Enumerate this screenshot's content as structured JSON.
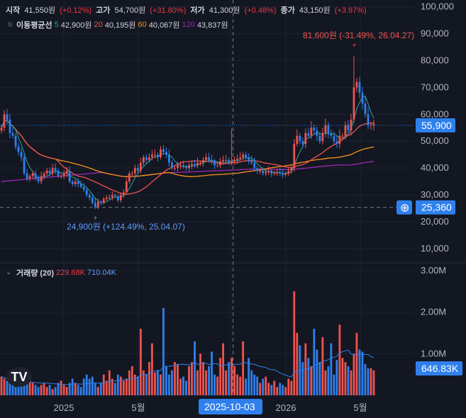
{
  "colors": {
    "background": "#131722",
    "up": "#ef5350",
    "down": "#2f80ed",
    "grid": "#1f2330",
    "text": "#b2b5be",
    "ma5": "#26a69a",
    "ma20": "#ef5350",
    "ma60": "#f7931a",
    "ma120": "#9c27b0",
    "vol_ma": "#2f80ed",
    "price_tag": "#2f80ed"
  },
  "header": {
    "open_label": "시작",
    "open_value": "41,550원",
    "open_change": "(+0.12%)",
    "high_label": "고가",
    "high_value": "54,700원",
    "high_change": "(+31.80%)",
    "low_label": "저가",
    "low_value": "41,300원",
    "low_change": "(+0.48%)",
    "close_label": "종가",
    "close_value": "43,150원",
    "close_change": "(+3.97%)"
  },
  "ma_legend": {
    "icon": "eye-slash-icon",
    "title": "이동평균선",
    "items": [
      {
        "period": "5",
        "value": "42,900원",
        "color": "#26a69a"
      },
      {
        "period": "20",
        "value": "40,195원",
        "color": "#ef5350"
      },
      {
        "period": "60",
        "value": "40,067원",
        "color": "#f7931a"
      },
      {
        "period": "120",
        "value": "43,837원",
        "color": "#9c27b0"
      }
    ]
  },
  "volume_legend": {
    "icon": "collapse-icon",
    "title": "거래량 (20)",
    "value_up": "229.68K",
    "value_ma": "710.04K"
  },
  "logo": "tradingview-logo",
  "chart_data": {
    "type": "candlestick",
    "price_axis": {
      "ticks": [
        "100,000",
        "90,000",
        "80,000",
        "70,000",
        "60,000",
        "50,000",
        "40,000",
        "30,000",
        "20,000",
        "10,000"
      ],
      "range": [
        5000,
        102500
      ],
      "current_price": "55,900",
      "current_price_value": 55900,
      "crosshair_price": "25,360",
      "crosshair_price_value": 25360
    },
    "volume_axis": {
      "ticks": [
        "3.00M",
        "2.00M",
        "1.00M"
      ],
      "range": [
        0,
        3100000
      ],
      "current_volume": "646.83K"
    },
    "x_axis": {
      "labels": [
        "2025",
        "5월",
        "2025-10-03",
        "2026",
        "5월"
      ]
    },
    "annotations": {
      "high": "81,600원 (-31.49%, 26.04.27)",
      "low": "24,900원 (+124.49%, 25.04.07)"
    },
    "periods": 132,
    "crosshair_x_index": 81,
    "closes": [
      55000,
      60000,
      58000,
      53000,
      52000,
      48000,
      46000,
      44000,
      38000,
      36000,
      37000,
      38000,
      36000,
      35000,
      37000,
      38000,
      39000,
      38000,
      40000,
      39000,
      37000,
      37000,
      38000,
      39000,
      35000,
      34000,
      35000,
      34000,
      33000,
      32000,
      30000,
      29000,
      27000,
      25500,
      27500,
      27000,
      28500,
      29000,
      29000,
      30000,
      29500,
      28000,
      30000,
      31000,
      35000,
      38000,
      38000,
      40000,
      39000,
      42000,
      44000,
      43000,
      44000,
      45000,
      45000,
      44000,
      47000,
      46000,
      45000,
      42000,
      40000,
      40000,
      41000,
      41000,
      40500,
      40000,
      41000,
      41500,
      41000,
      42000,
      42000,
      43000,
      44000,
      43000,
      42500,
      41000,
      41000,
      42500,
      43000,
      43000,
      42000,
      42500,
      43000,
      43500,
      44000,
      45000,
      44000,
      43000,
      42000,
      40000,
      39000,
      39000,
      38000,
      38500,
      39000,
      38000,
      38000,
      38500,
      38000,
      37500,
      38000,
      39000,
      40000,
      49000,
      52000,
      50000,
      49000,
      53000,
      52000,
      55000,
      54000,
      52000,
      50000,
      53000,
      56000,
      53000,
      52000,
      50000,
      49000,
      52000,
      52000,
      56000,
      54000,
      58000,
      70000,
      72000,
      68000,
      64000,
      60000,
      55900,
      56000,
      56500
    ],
    "volumes": [
      0.45,
      0.4,
      0.35,
      0.3,
      0.25,
      0.2,
      0.2,
      0.25,
      0.3,
      0.35,
      0.4,
      0.3,
      0.25,
      0.2,
      0.25,
      0.3,
      0.2,
      0.25,
      0.15,
      0.2,
      0.3,
      0.35,
      0.25,
      0.2,
      0.3,
      0.4,
      0.3,
      0.25,
      0.2,
      0.4,
      0.5,
      0.4,
      0.45,
      0.3,
      0.2,
      0.3,
      0.5,
      0.35,
      0.6,
      0.4,
      0.3,
      0.5,
      0.45,
      0.35,
      0.4,
      0.6,
      0.7,
      0.5,
      0.45,
      1.6,
      0.6,
      0.5,
      0.8,
      1.25,
      0.55,
      0.6,
      0.5,
      2.1,
      0.7,
      0.5,
      0.6,
      0.8,
      0.75,
      0.4,
      0.45,
      0.35,
      0.7,
      0.8,
      1.3,
      0.6,
      1.0,
      0.8,
      0.6,
      0.7,
      1.05,
      0.5,
      0.45,
      0.9,
      1.25,
      0.6,
      0.8,
      0.9,
      0.7,
      0.5,
      0.45,
      1.3,
      0.4,
      0.9,
      0.6,
      0.5,
      0.45,
      0.3,
      0.4,
      0.45,
      0.3,
      0.25,
      0.35,
      0.2,
      0.3,
      0.25,
      0.2,
      0.4,
      0.35,
      2.5,
      1.5,
      1.2,
      0.8,
      1.25,
      0.9,
      0.7,
      1.6,
      1.1,
      0.8,
      1.4,
      0.6,
      0.7,
      1.25,
      0.5,
      0.85,
      1.7,
      0.9,
      0.8,
      0.7,
      0.6,
      1.0,
      1.5,
      1.1,
      1.05,
      0.75,
      0.65,
      0.65,
      0.6
    ]
  }
}
